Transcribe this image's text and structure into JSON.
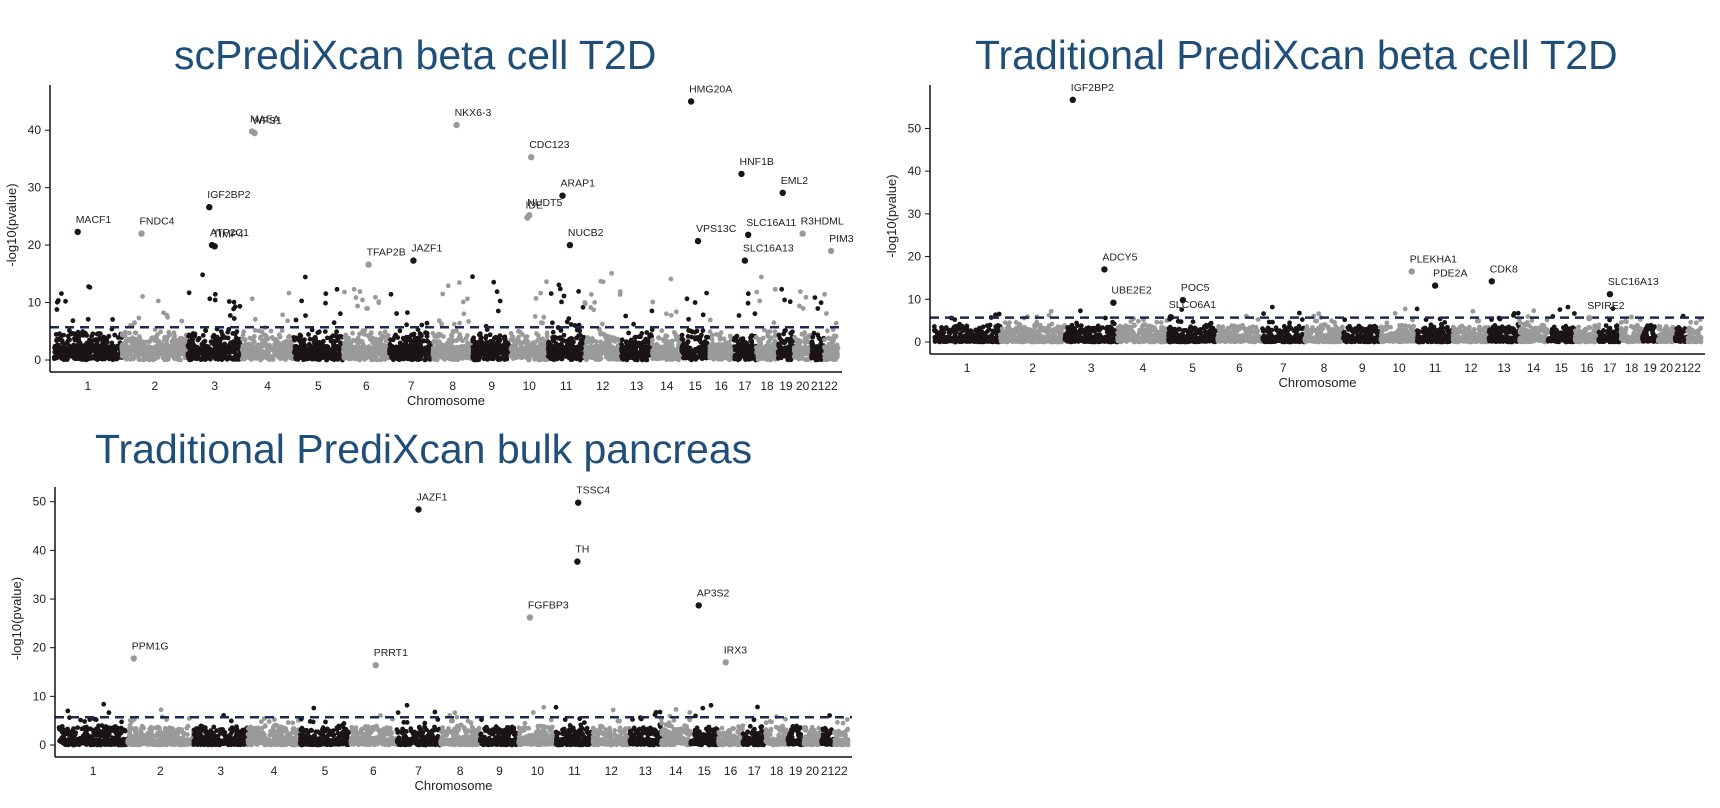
{
  "colors": {
    "title": "#1f4e79",
    "odd_chromosome": "#1a1416",
    "even_chromosome": "#9a9a9a",
    "threshold_line": "#1a2a50",
    "axis": "#111111"
  },
  "chart_data": [
    {
      "type": "scatter",
      "subtype": "manhattan",
      "title": "scPrediXcan beta cell T2D",
      "xlabel": "Chromosome",
      "ylabel": "-log10(pvalue)",
      "ylim": [
        0,
        47
      ],
      "yticks": [
        0,
        10,
        20,
        30,
        40
      ],
      "threshold": 5.7,
      "chromosome_labels": [
        "1",
        "2",
        "3",
        "4",
        "5",
        "6",
        "7",
        "8",
        "9",
        "10",
        "11",
        "12",
        "13",
        "14",
        "15",
        "16",
        "17",
        "18",
        "19",
        "20",
        "21",
        "22"
      ],
      "labeled_genes": [
        {
          "gene": "MACF1",
          "chr": 1,
          "pos": 0.35,
          "y": 22.3
        },
        {
          "gene": "FNDC4",
          "chr": 2,
          "pos": 0.3,
          "y": 22.0
        },
        {
          "gene": "IGF2BP2",
          "chr": 3,
          "pos": 0.4,
          "y": 26.6
        },
        {
          "gene": "ATP2C1",
          "chr": 3,
          "pos": 0.45,
          "y": 20.0
        },
        {
          "gene": "TIMP4",
          "chr": 3,
          "pos": 0.5,
          "y": 19.8
        },
        {
          "gene": "MAEA",
          "chr": 4,
          "pos": 0.2,
          "y": 39.8
        },
        {
          "gene": "WFS1",
          "chr": 4,
          "pos": 0.25,
          "y": 39.5
        },
        {
          "gene": "TFAP2B",
          "chr": 6,
          "pos": 0.55,
          "y": 16.6
        },
        {
          "gene": "JAZF1",
          "chr": 7,
          "pos": 0.55,
          "y": 17.3
        },
        {
          "gene": "NKX6-3",
          "chr": 8,
          "pos": 0.6,
          "y": 40.9
        },
        {
          "gene": "CDC123",
          "chr": 10,
          "pos": 0.55,
          "y": 35.3
        },
        {
          "gene": "IDE",
          "chr": 10,
          "pos": 0.45,
          "y": 24.8
        },
        {
          "gene": "NUDT5",
          "chr": 10,
          "pos": 0.5,
          "y": 25.2
        },
        {
          "gene": "ARAP1",
          "chr": 11,
          "pos": 0.4,
          "y": 28.6
        },
        {
          "gene": "NUCB2",
          "chr": 11,
          "pos": 0.6,
          "y": 20.0
        },
        {
          "gene": "HMG20A",
          "chr": 15,
          "pos": 0.35,
          "y": 45.0
        },
        {
          "gene": "VPS13C",
          "chr": 15,
          "pos": 0.6,
          "y": 20.7
        },
        {
          "gene": "HNF1B",
          "chr": 17,
          "pos": 0.35,
          "y": 32.4
        },
        {
          "gene": "SLC16A11",
          "chr": 17,
          "pos": 0.65,
          "y": 21.8
        },
        {
          "gene": "SLC16A13",
          "chr": 17,
          "pos": 0.5,
          "y": 17.3
        },
        {
          "gene": "EML2",
          "chr": 19,
          "pos": 0.3,
          "y": 29.1
        },
        {
          "gene": "R3HDML",
          "chr": 20,
          "pos": 0.5,
          "y": 22.0
        },
        {
          "gene": "PIM3",
          "chr": 22,
          "pos": 0.5,
          "y": 19.0
        }
      ]
    },
    {
      "type": "scatter",
      "subtype": "manhattan",
      "title": "Traditional PrediXcan beta cell T2D",
      "xlabel": "Chromosome",
      "ylabel": "-log10(pvalue)",
      "ylim": [
        0,
        59
      ],
      "yticks": [
        0,
        10,
        20,
        30,
        40,
        50
      ],
      "threshold": 5.7,
      "chromosome_labels": [
        "1",
        "2",
        "3",
        "4",
        "5",
        "6",
        "7",
        "8",
        "9",
        "10",
        "11",
        "12",
        "13",
        "14",
        "15",
        "16",
        "17",
        "18",
        "19",
        "20",
        "21",
        "22"
      ],
      "labeled_genes": [
        {
          "gene": "IGF2BP2",
          "chr": 3,
          "pos": 0.15,
          "y": 56.7
        },
        {
          "gene": "ADCY5",
          "chr": 3,
          "pos": 0.75,
          "y": 17.0
        },
        {
          "gene": "UBE2E2",
          "chr": 3,
          "pos": 0.92,
          "y": 9.2
        },
        {
          "gene": "POC5",
          "chr": 5,
          "pos": 0.3,
          "y": 9.8
        },
        {
          "gene": "SLCO6A1",
          "chr": 5,
          "pos": 0.05,
          "y": 5.8
        },
        {
          "gene": "PLEKHA1",
          "chr": 10,
          "pos": 0.85,
          "y": 16.5
        },
        {
          "gene": "PDE2A",
          "chr": 11,
          "pos": 0.5,
          "y": 13.2
        },
        {
          "gene": "CDK8",
          "chr": 13,
          "pos": 0.1,
          "y": 14.2
        },
        {
          "gene": "SPIRE2",
          "chr": 16,
          "pos": 0.6,
          "y": 5.6
        },
        {
          "gene": "SLC16A13",
          "chr": 17,
          "pos": 0.5,
          "y": 11.2
        }
      ]
    },
    {
      "type": "scatter",
      "subtype": "manhattan",
      "title": "Traditional PrediXcan bulk pancreas",
      "xlabel": "Chromosome",
      "ylabel": "-log10(pvalue)",
      "ylim": [
        0,
        52
      ],
      "yticks": [
        0,
        10,
        20,
        30,
        40,
        50
      ],
      "threshold": 5.7,
      "chromosome_labels": [
        "1",
        "2",
        "3",
        "4",
        "5",
        "6",
        "7",
        "8",
        "9",
        "10",
        "11",
        "12",
        "13",
        "14",
        "15",
        "16",
        "17",
        "18",
        "19",
        "20",
        "21",
        "22"
      ],
      "labeled_genes": [
        {
          "gene": "PPM1G",
          "chr": 2,
          "pos": 0.1,
          "y": 17.8
        },
        {
          "gene": "PRRT1",
          "chr": 6,
          "pos": 0.55,
          "y": 16.4
        },
        {
          "gene": "JAZF1",
          "chr": 7,
          "pos": 0.5,
          "y": 48.4
        },
        {
          "gene": "FGFBP3",
          "chr": 10,
          "pos": 0.3,
          "y": 26.2
        },
        {
          "gene": "TSSC4",
          "chr": 11,
          "pos": 0.6,
          "y": 49.8
        },
        {
          "gene": "TH",
          "chr": 11,
          "pos": 0.58,
          "y": 37.7
        },
        {
          "gene": "AP3S2",
          "chr": 15,
          "pos": 0.3,
          "y": 28.7
        },
        {
          "gene": "IRX3",
          "chr": 16,
          "pos": 0.3,
          "y": 17.0
        }
      ]
    }
  ]
}
